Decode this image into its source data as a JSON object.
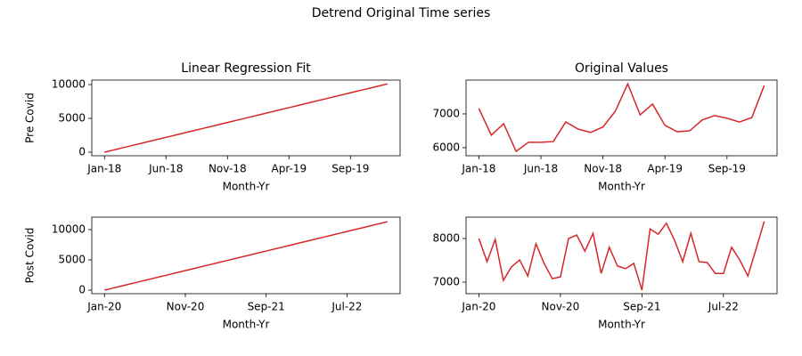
{
  "title": "Detrend Original Time series",
  "chart_data": [
    {
      "type": "line",
      "title": "Linear Regression Fit",
      "ylabel": "Pre Covid",
      "xlabel": "Month-Yr",
      "color": "#d62728",
      "categories": [
        "Jan-18",
        null,
        null,
        null,
        null,
        "Jun-18",
        null,
        null,
        null,
        null,
        "Nov-18",
        null,
        null,
        null,
        null,
        "Apr-19",
        null,
        null,
        null,
        null,
        "Sep-19",
        null,
        null,
        null
      ],
      "values": [
        0,
        439,
        878,
        1317,
        1756,
        2195,
        2634,
        3073,
        3512,
        3951,
        4390,
        4829,
        5268,
        5707,
        6146,
        6585,
        7024,
        7463,
        7902,
        8341,
        8780,
        9219,
        9658,
        10097
      ],
      "ylim": [
        -530,
        10660
      ],
      "yticks": [
        0,
        5000,
        10000
      ]
    },
    {
      "type": "line",
      "title": "Original Values",
      "xlabel": "Month-Yr",
      "color": "#d62728",
      "categories": [
        "Jan-18",
        null,
        null,
        null,
        null,
        "Jun-18",
        null,
        null,
        null,
        null,
        "Nov-18",
        null,
        null,
        null,
        null,
        "Apr-19",
        null,
        null,
        null,
        null,
        "Sep-19",
        null,
        null,
        null
      ],
      "values": [
        7160,
        6370,
        6710,
        5890,
        6160,
        6160,
        6180,
        6760,
        6550,
        6450,
        6610,
        7080,
        7890,
        6970,
        7290,
        6660,
        6470,
        6500,
        6820,
        6950,
        6870,
        6760,
        6890,
        7840
      ],
      "ylim": [
        5760,
        8000
      ],
      "yticks": [
        6000,
        7000
      ]
    },
    {
      "type": "line",
      "ylabel": "Post Covid",
      "xlabel": "Month-Yr",
      "color": "#d62728",
      "categories": [
        "Jan-20",
        null,
        null,
        null,
        null,
        null,
        null,
        null,
        null,
        null,
        "Nov-20",
        null,
        null,
        null,
        null,
        null,
        null,
        null,
        null,
        null,
        "Sep-21",
        null,
        null,
        null,
        null,
        null,
        null,
        null,
        null,
        null,
        "Jul-22",
        null,
        null,
        null,
        null,
        null
      ],
      "values": [
        0,
        323,
        646,
        969,
        1292,
        1615,
        1938,
        2261,
        2584,
        2907,
        3230,
        3553,
        3876,
        4199,
        4522,
        4845,
        5168,
        5491,
        5814,
        6137,
        6460,
        6783,
        7106,
        7429,
        7752,
        8075,
        8398,
        8721,
        9044,
        9367,
        9690,
        10013,
        10336,
        10659,
        10982,
        11305
      ],
      "ylim": [
        -590,
        12060
      ],
      "yticks": [
        0,
        5000,
        10000
      ]
    },
    {
      "type": "line",
      "xlabel": "Month-Yr",
      "color": "#d62728",
      "categories": [
        "Jan-20",
        null,
        null,
        null,
        null,
        null,
        null,
        null,
        null,
        null,
        "Nov-20",
        null,
        null,
        null,
        null,
        null,
        null,
        null,
        null,
        null,
        "Sep-21",
        null,
        null,
        null,
        null,
        null,
        null,
        null,
        null,
        null,
        "Jul-22",
        null,
        null,
        null,
        null,
        null
      ],
      "values": [
        8000,
        7470,
        7980,
        7040,
        7350,
        7510,
        7140,
        7880,
        7430,
        7080,
        7120,
        8000,
        8080,
        7710,
        8120,
        7200,
        7800,
        7370,
        7310,
        7430,
        6820,
        8220,
        8100,
        8350,
        7960,
        7470,
        8120,
        7470,
        7450,
        7200,
        7200,
        7800,
        7510,
        7140,
        7760,
        8390
      ],
      "ylim": [
        6735,
        8490
      ],
      "yticks": [
        7000,
        8000
      ]
    }
  ]
}
